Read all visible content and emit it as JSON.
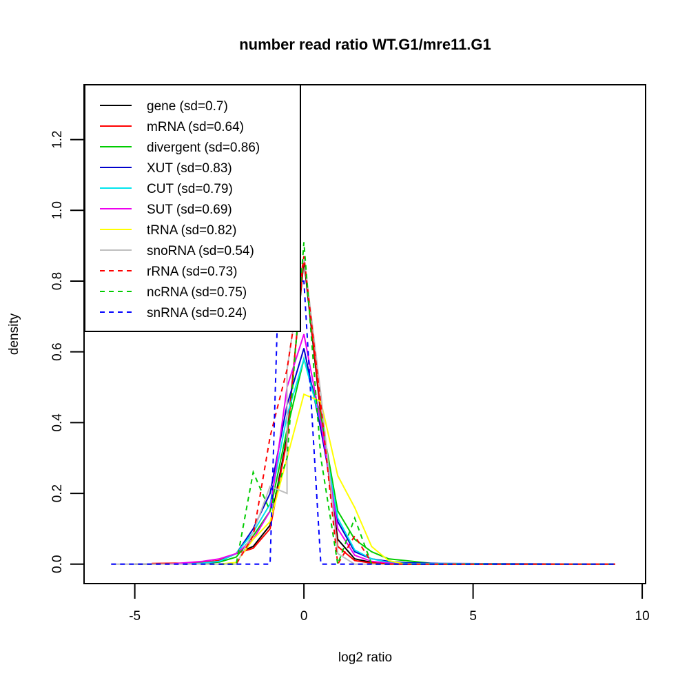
{
  "chart_data": {
    "type": "line",
    "title": "number read ratio WT.G1/mre11.G1",
    "xlabel": "log2 ratio",
    "ylabel": "density",
    "xlim": [
      -6.5,
      10.1
    ],
    "ylim": [
      -0.055,
      1.355
    ],
    "xticks": [
      -5,
      0,
      5,
      10
    ],
    "xtick_labels": [
      "-5",
      "0",
      "5",
      "10"
    ],
    "yticks": [
      0.0,
      0.2,
      0.4,
      0.6,
      0.8,
      1.0,
      1.2
    ],
    "ytick_labels": [
      "0.0",
      "0.2",
      "0.4",
      "0.6",
      "0.8",
      "1.0",
      "1.2"
    ],
    "grid": false,
    "legend_position": "top-left",
    "series": [
      {
        "name": "gene (sd=0.7)",
        "color": "#000000",
        "dash": "solid",
        "x": [
          -5.0,
          -4.5,
          -3.5,
          -3.0,
          -2.5,
          -2.0,
          -1.5,
          -1.0,
          -0.5,
          0.0,
          0.5,
          1.0,
          1.5,
          2.0,
          2.5,
          3.0,
          4.0,
          9.2
        ],
        "y": [
          0.0,
          0.0,
          0.002,
          0.004,
          0.01,
          0.03,
          0.05,
          0.11,
          0.36,
          0.86,
          0.42,
          0.07,
          0.015,
          0.005,
          0.002,
          0.0,
          0.0,
          0.0
        ]
      },
      {
        "name": "mRNA (sd=0.64)",
        "color": "#ff0000",
        "dash": "solid",
        "x": [
          -4.5,
          -3.5,
          -3.0,
          -2.5,
          -2.0,
          -1.5,
          -1.0,
          -0.5,
          0.0,
          0.5,
          1.0,
          1.5,
          2.0,
          2.5,
          3.0,
          9.2
        ],
        "y": [
          0.002,
          0.003,
          0.005,
          0.01,
          0.03,
          0.045,
          0.1,
          0.35,
          0.87,
          0.43,
          0.05,
          0.01,
          0.003,
          0.001,
          0.0,
          0.0
        ]
      },
      {
        "name": "divergent (sd=0.86)",
        "color": "#00cc00",
        "dash": "solid",
        "x": [
          -3.5,
          -3.0,
          -2.5,
          -2.0,
          -1.5,
          -1.0,
          -0.5,
          0.0,
          0.5,
          1.0,
          1.5,
          2.0,
          2.5,
          3.0,
          3.5,
          4.0,
          9.2
        ],
        "y": [
          0.0,
          0.002,
          0.006,
          0.02,
          0.08,
          0.15,
          0.38,
          0.58,
          0.42,
          0.15,
          0.07,
          0.035,
          0.015,
          0.01,
          0.005,
          0.0,
          0.0
        ]
      },
      {
        "name": "XUT (sd=0.83)",
        "color": "#0000cc",
        "dash": "solid",
        "x": [
          -3.5,
          -3.0,
          -2.5,
          -2.0,
          -1.5,
          -1.0,
          -0.5,
          0.0,
          0.5,
          1.0,
          1.5,
          2.0,
          2.5,
          3.0,
          4.0,
          9.2
        ],
        "y": [
          0.0,
          0.002,
          0.008,
          0.03,
          0.1,
          0.2,
          0.45,
          0.61,
          0.38,
          0.12,
          0.035,
          0.015,
          0.008,
          0.004,
          0.002,
          0.0
        ]
      },
      {
        "name": "CUT (sd=0.79)",
        "color": "#00e5ee",
        "dash": "solid",
        "x": [
          -3.5,
          -3.0,
          -2.5,
          -2.0,
          -1.5,
          -1.0,
          -0.5,
          0.0,
          0.5,
          1.0,
          1.5,
          2.0,
          2.5,
          3.0,
          9.2
        ],
        "y": [
          0.0,
          0.003,
          0.008,
          0.03,
          0.09,
          0.17,
          0.42,
          0.58,
          0.4,
          0.13,
          0.04,
          0.015,
          0.005,
          0.002,
          0.0
        ]
      },
      {
        "name": "SUT (sd=0.69)",
        "color": "#ee00ee",
        "dash": "solid",
        "x": [
          -4.0,
          -3.5,
          -3.0,
          -2.5,
          -2.0,
          -1.5,
          -1.0,
          -0.5,
          0.0,
          0.5,
          1.0,
          1.5,
          2.0,
          2.5,
          3.0,
          9.2
        ],
        "y": [
          0.0,
          0.004,
          0.008,
          0.015,
          0.03,
          0.07,
          0.15,
          0.5,
          0.65,
          0.4,
          0.1,
          0.025,
          0.008,
          0.003,
          0.0,
          0.0
        ]
      },
      {
        "name": "tRNA (sd=0.82)",
        "color": "#ffff00",
        "dash": "solid",
        "x": [
          -3.0,
          -2.5,
          -2.0,
          -1.5,
          -1.0,
          -0.5,
          0.0,
          0.5,
          1.0,
          1.5,
          2.0,
          2.5,
          3.0,
          9.2
        ],
        "y": [
          0.0,
          0.0,
          0.005,
          0.07,
          0.12,
          0.3,
          0.48,
          0.46,
          0.25,
          0.16,
          0.05,
          0.01,
          0.0,
          0.0
        ]
      },
      {
        "name": "snoRNA (sd=0.54)",
        "color": "#bebebe",
        "dash": "solid",
        "x": [
          -5.7,
          -2.5,
          -2.0,
          -1.5,
          -1.0,
          -0.5,
          -0.5,
          0.0,
          0.5,
          1.0,
          1.5,
          2.0,
          9.2
        ],
        "y": [
          0.0,
          0.0,
          0.0,
          0.09,
          0.22,
          0.2,
          0.55,
          0.87,
          0.48,
          0.03,
          0.0,
          0.0,
          0.0
        ]
      },
      {
        "name": "rRNA (sd=0.73)",
        "color": "#ff0000",
        "dash": "dashed",
        "x": [
          -2.5,
          -2.0,
          -1.5,
          -1.0,
          -0.5,
          0.0,
          0.5,
          1.0,
          1.5,
          2.0,
          2.5,
          9.2
        ],
        "y": [
          0.0,
          0.0,
          0.08,
          0.36,
          0.55,
          0.87,
          0.45,
          0.0,
          0.08,
          0.005,
          0.0,
          0.0
        ]
      },
      {
        "name": "ncRNA (sd=0.75)",
        "color": "#00cc00",
        "dash": "dashed",
        "x": [
          -2.5,
          -2.0,
          -1.5,
          -1.0,
          -0.5,
          0.0,
          0.5,
          1.0,
          1.5,
          2.0,
          2.5,
          9.2
        ],
        "y": [
          0.0,
          0.0,
          0.26,
          0.15,
          0.3,
          0.91,
          0.3,
          0.0,
          0.13,
          0.0,
          0.0,
          0.0
        ]
      },
      {
        "name": "snRNA (sd=0.24)",
        "color": "#0000ff",
        "dash": "dashed",
        "x": [
          -5.7,
          -1.0,
          -0.75,
          0.0,
          0.5,
          9.2
        ],
        "y": [
          0.0,
          0.0,
          0.8,
          0.8,
          0.0,
          0.0
        ]
      }
    ]
  }
}
